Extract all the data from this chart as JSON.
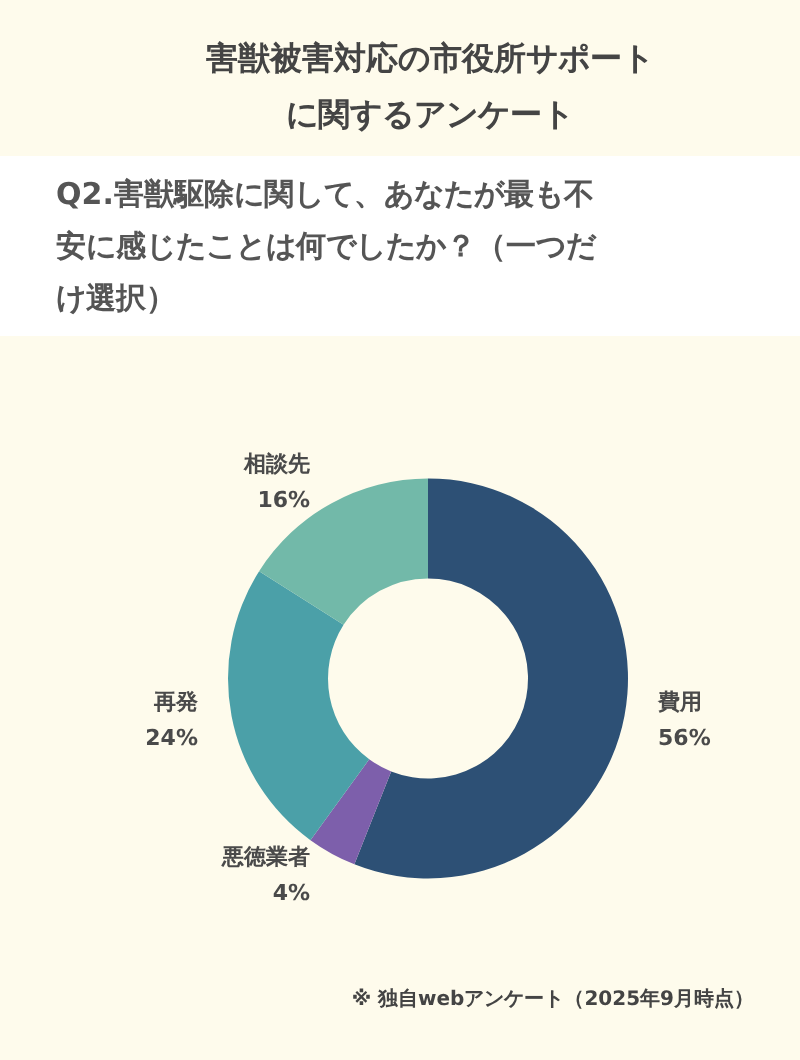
{
  "chart_data": {
    "type": "donut",
    "title": "害獣被害対応の市役所サポートに関するアンケート",
    "subtitle": "Q2.害獣駆除に関して、あなたが最も不安に感じたことは何でしたか？（一つだけ選択）",
    "categories": [
      "費用",
      "悪徳業者",
      "再発",
      "相談先"
    ],
    "values": [
      56,
      4,
      24,
      16
    ],
    "value_labels": [
      "56%",
      "4%",
      "24%",
      "16%"
    ],
    "colors": [
      "#2d5075",
      "#7d5fab",
      "#4ba0a8",
      "#72b9a9"
    ],
    "legend": false,
    "annotations": [
      "※ 独自webアンケート（2025年9月時点）"
    ]
  }
}
